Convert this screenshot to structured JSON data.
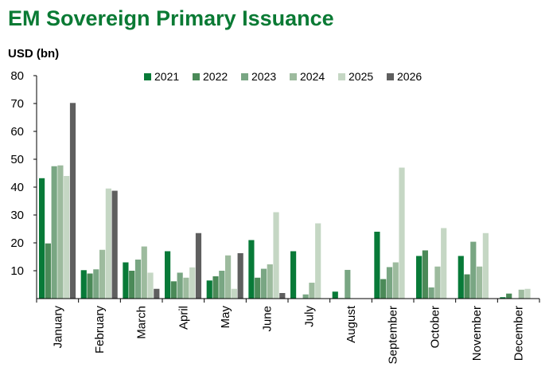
{
  "chart_data": {
    "type": "bar",
    "title": "EM Sovereign Primary Issuance",
    "ylabel": "USD (bn)",
    "xlabel": "",
    "ylim": [
      0,
      80
    ],
    "yticks": [
      10,
      20,
      30,
      40,
      50,
      60,
      70,
      80
    ],
    "grid": false,
    "legend_position": "top",
    "categories": [
      "January",
      "February",
      "March",
      "April",
      "May",
      "June",
      "July",
      "August",
      "September",
      "October",
      "November",
      "December"
    ],
    "series": [
      {
        "name": "2021",
        "color": "#087a38",
        "values": [
          43.2,
          10.2,
          13.0,
          17.0,
          6.5,
          21.0,
          17.0,
          2.5,
          24.0,
          15.3,
          15.3,
          0.5
        ]
      },
      {
        "name": "2022",
        "color": "#4b8a58",
        "values": [
          19.8,
          9.0,
          10.0,
          6.2,
          8.0,
          7.5,
          0,
          0.2,
          7.0,
          17.3,
          8.7,
          1.8
        ]
      },
      {
        "name": "2023",
        "color": "#79a683",
        "values": [
          47.5,
          10.5,
          14.0,
          9.3,
          10.0,
          10.7,
          1.5,
          10.3,
          11.3,
          4.0,
          20.4,
          0
        ]
      },
      {
        "name": "2024",
        "color": "#9dbb9e",
        "values": [
          47.8,
          17.5,
          18.7,
          7.5,
          15.5,
          12.3,
          5.7,
          0,
          13.0,
          11.5,
          11.5,
          3.2
        ]
      },
      {
        "name": "2025",
        "color": "#c5d7c4",
        "values": [
          44.0,
          39.5,
          9.3,
          11.2,
          3.5,
          31.0,
          27.0,
          0,
          47.0,
          25.3,
          23.5,
          3.5
        ]
      },
      {
        "name": "2026",
        "color": "#5f5f5f",
        "values": [
          70.2,
          38.7,
          3.5,
          23.5,
          16.3,
          2.0,
          0,
          0,
          0,
          0,
          0,
          0
        ]
      }
    ]
  },
  "colors": {
    "title": "#0a7a34",
    "axis": "#000000"
  }
}
